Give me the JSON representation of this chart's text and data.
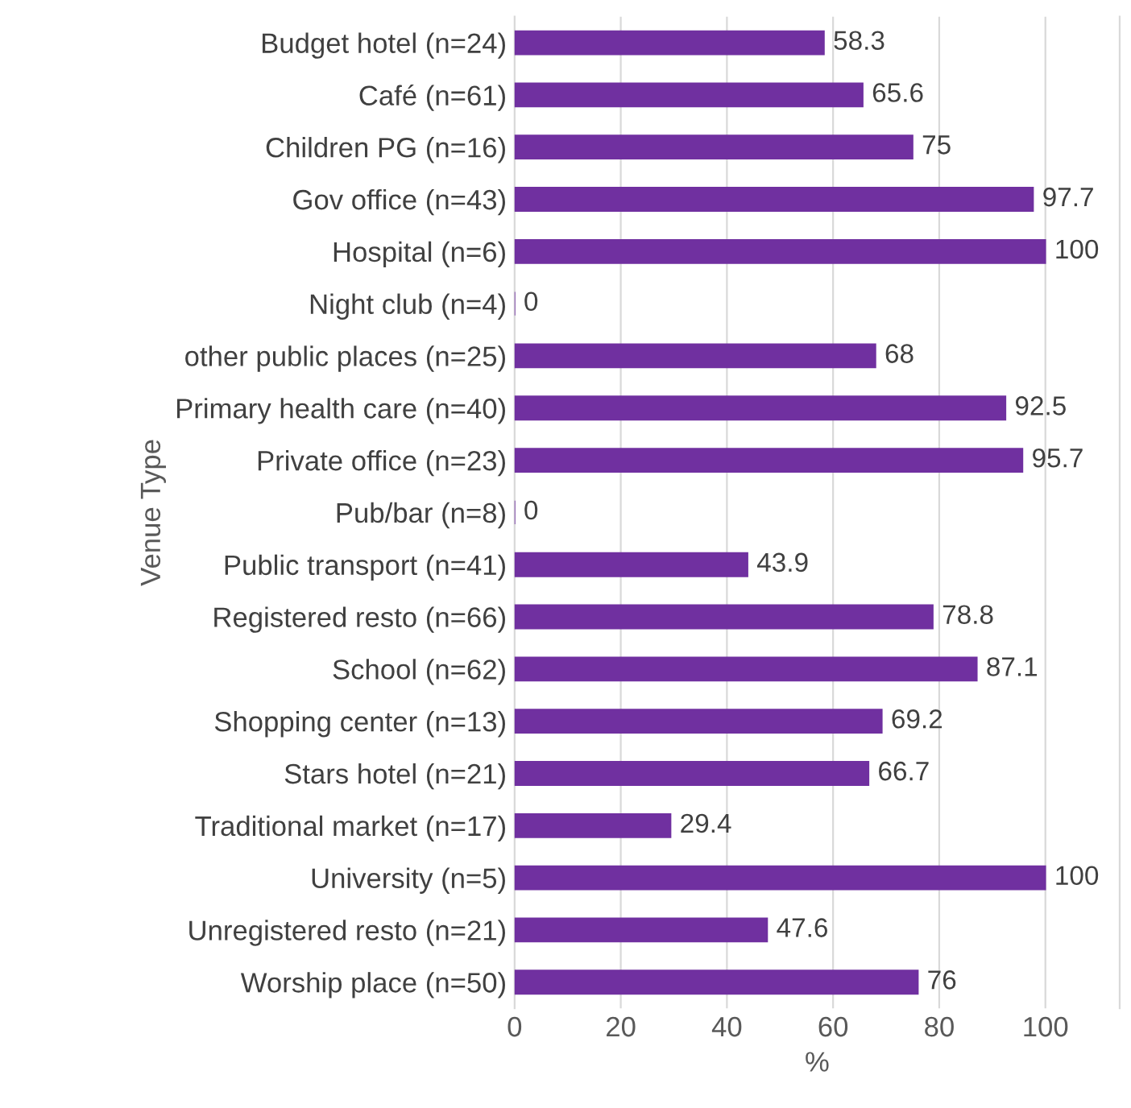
{
  "chart_data": {
    "type": "bar",
    "orientation": "horizontal",
    "ylabel": "Venue Type",
    "xlabel": "%",
    "categories": [
      "Budget hotel (n=24)",
      "Café (n=61)",
      "Children PG (n=16)",
      "Gov office (n=43)",
      "Hospital (n=6)",
      "Night club (n=4)",
      "other public places (n=25)",
      "Primary health care (n=40)",
      "Private office (n=23)",
      "Pub/bar (n=8)",
      "Public transport (n=41)",
      "Registered resto (n=66)",
      "School (n=62)",
      "Shopping center (n=13)",
      "Stars hotel (n=21)",
      "Traditional market (n=17)",
      "University (n=5)",
      "Unregistered resto (n=21)",
      "Worship place (n=50)"
    ],
    "values": [
      58.3,
      65.6,
      75,
      97.7,
      100,
      0,
      68,
      92.5,
      95.7,
      0,
      43.9,
      78.8,
      87.1,
      69.2,
      66.7,
      29.4,
      100,
      47.6,
      76
    ],
    "color": "#7030a0",
    "data_labels": true,
    "grid": "x",
    "xlim": [
      0,
      114
    ],
    "xticks": [
      0,
      20,
      40,
      60,
      80,
      100
    ]
  }
}
